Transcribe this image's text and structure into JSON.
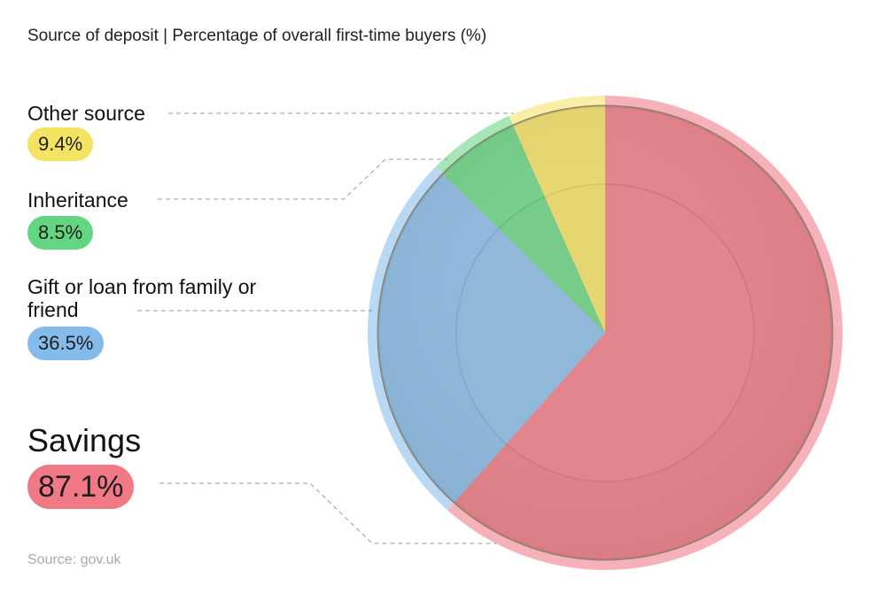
{
  "chart_data": {
    "type": "pie",
    "title": "Source of deposit | Percentage of overall first-time buyers (%)",
    "source": "Source: gov.uk",
    "categories": [
      "Savings",
      "Gift or loan from family or friend",
      "Inheritance",
      "Other source"
    ],
    "values": [
      87.1,
      36.5,
      8.5,
      9.4
    ],
    "value_labels": [
      "87.1%",
      "36.5%",
      "8.5%",
      "9.4%"
    ],
    "colors": [
      "#f0727f",
      "#7db8ea",
      "#5cd47b",
      "#f5e25a"
    ]
  }
}
